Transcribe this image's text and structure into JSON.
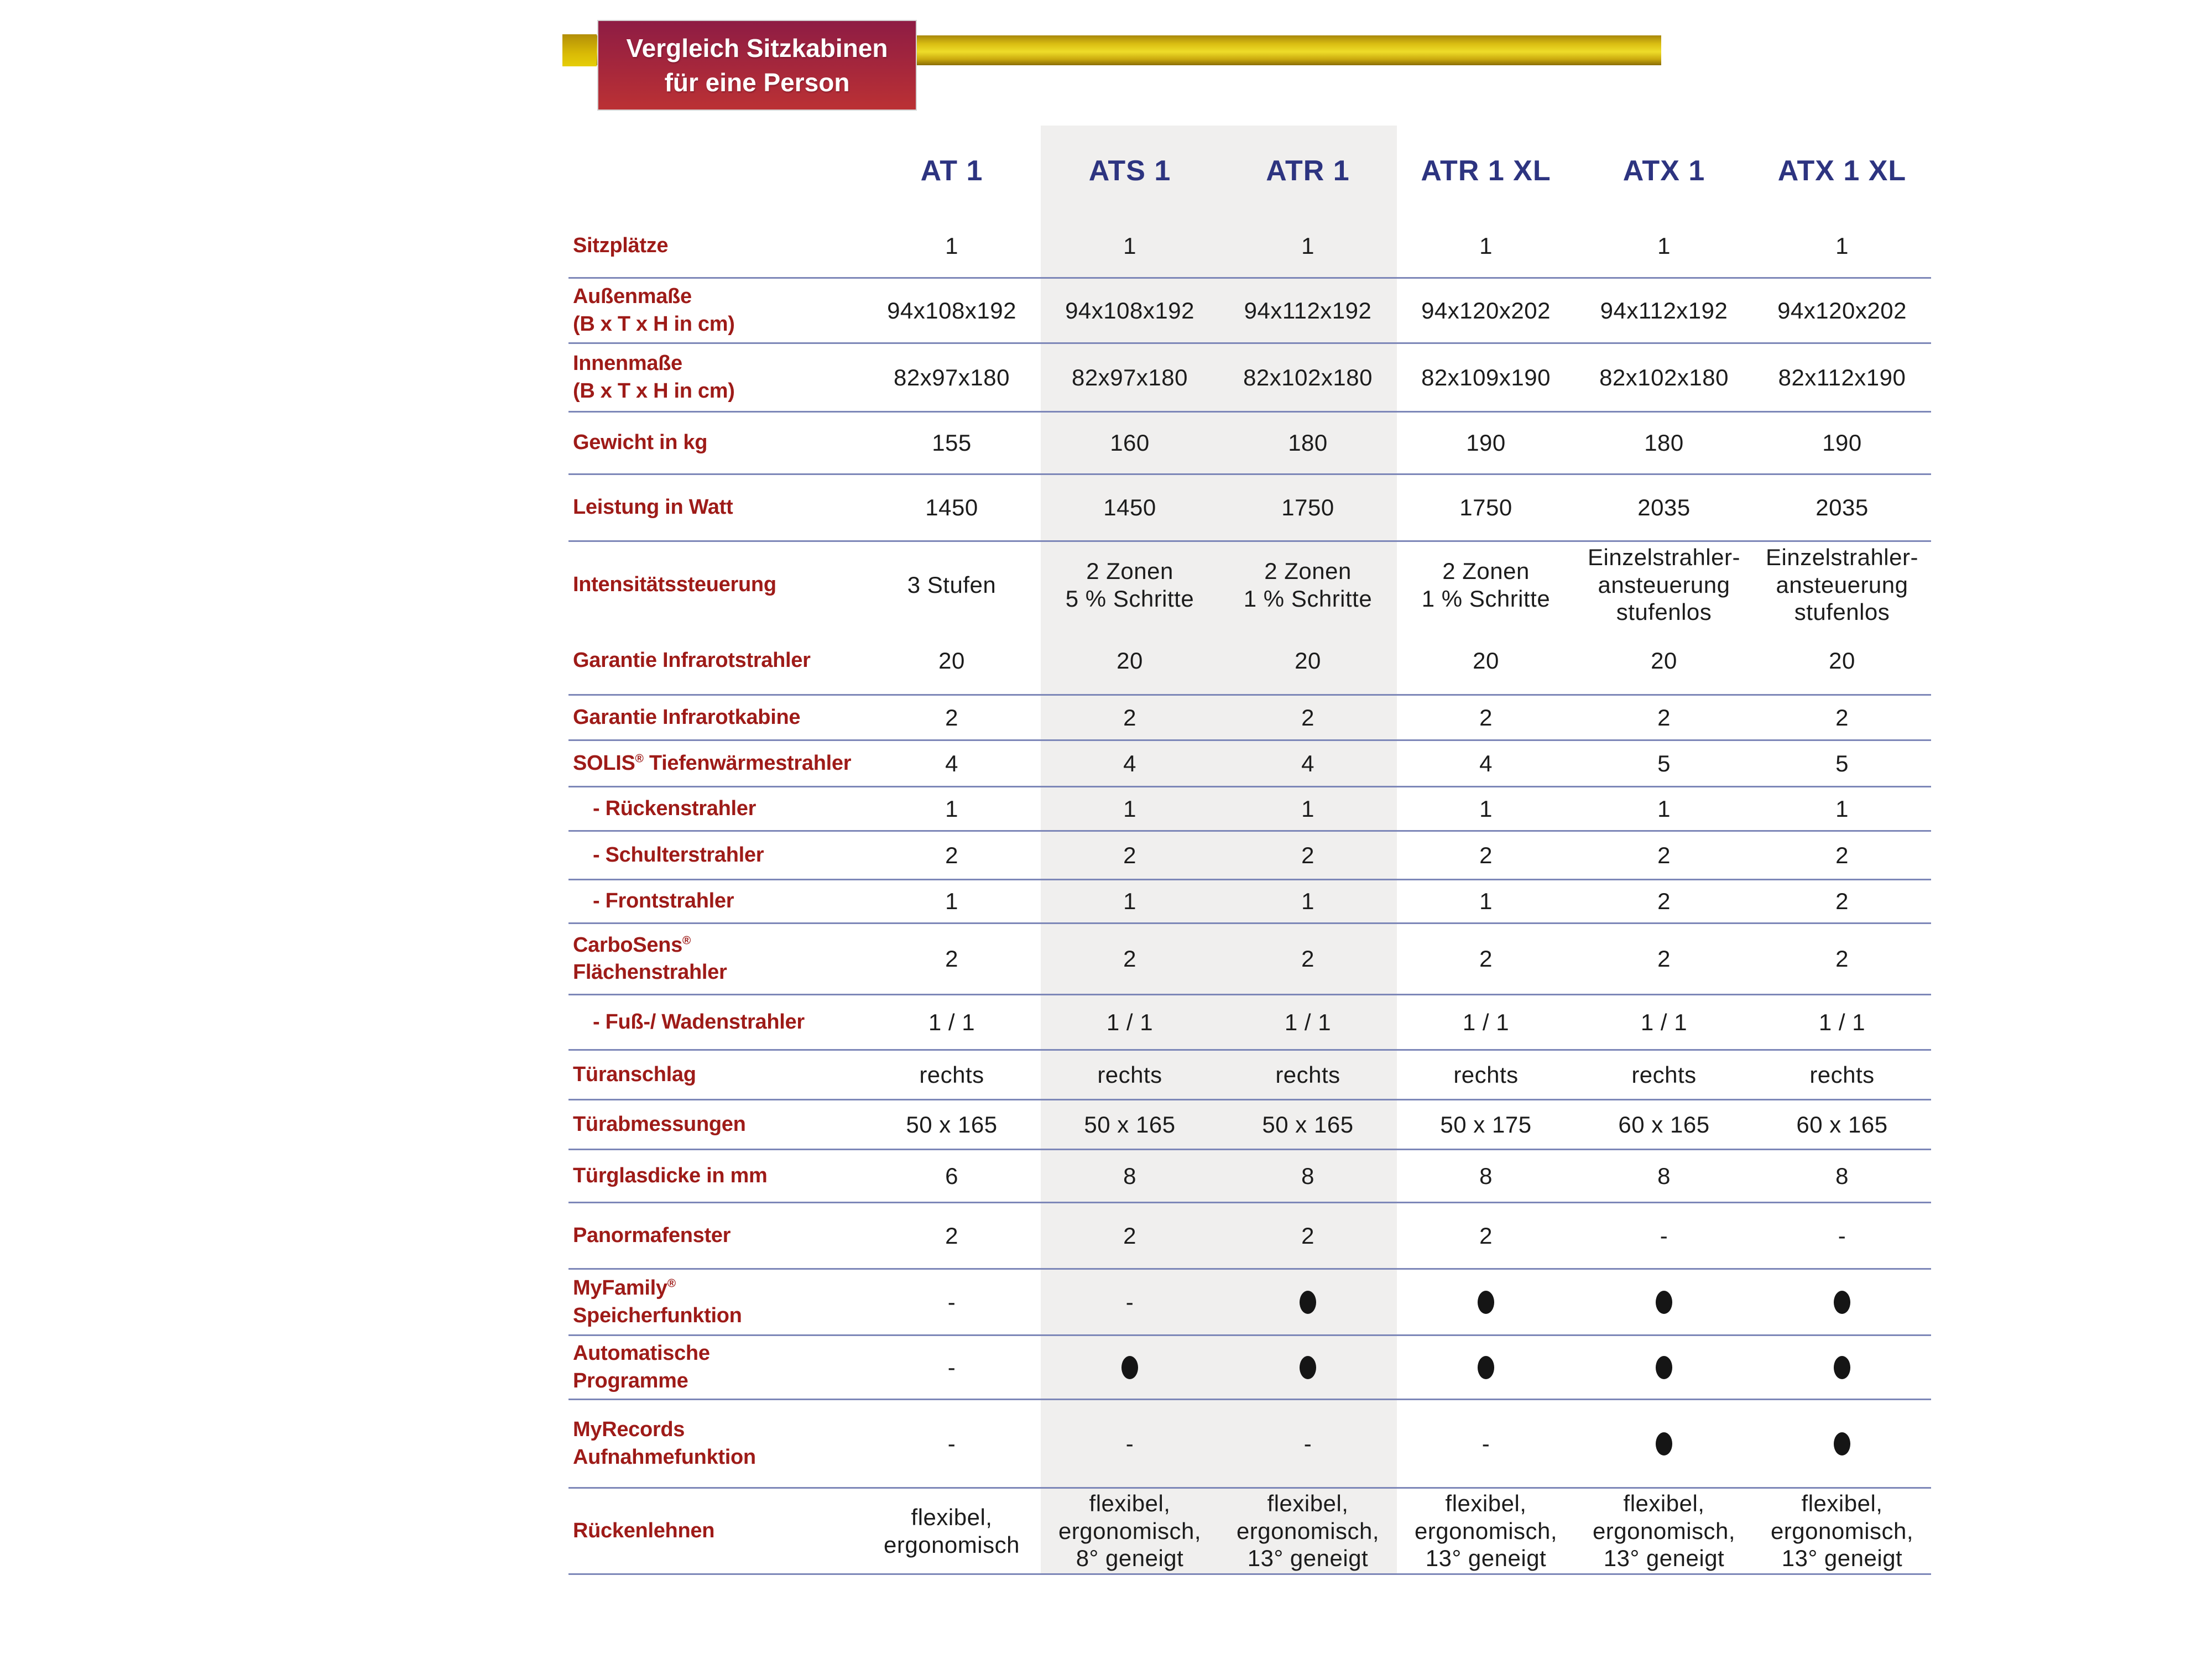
{
  "title": {
    "line1": "Vergleich Sitzkabinen",
    "line2": "für eine Person"
  },
  "table": {
    "models": [
      "AT 1",
      "ATS 1",
      "ATR 1",
      "ATR 1 XL",
      "ATX 1",
      "ATX 1 XL"
    ],
    "highlighted_columns": [
      "ATS 1",
      "ATR 1"
    ],
    "feature_dot_symbol": "●",
    "rows": [
      {
        "label": "Sitzplätze",
        "values": [
          "1",
          "1",
          "1",
          "1",
          "1",
          "1"
        ]
      },
      {
        "label": "Außenmaße\n(B x T x H in cm)",
        "values": [
          "94x108x192",
          "94x108x192",
          "94x112x192",
          "94x120x202",
          "94x112x192",
          "94x120x202"
        ]
      },
      {
        "label": "Innenmaße\n(B x T x H in cm)",
        "values": [
          "82x97x180",
          "82x97x180",
          "82x102x180",
          "82x109x190",
          "82x102x180",
          "82x112x190"
        ]
      },
      {
        "label": "Gewicht in kg",
        "values": [
          "155",
          "160",
          "180",
          "190",
          "180",
          "190"
        ]
      },
      {
        "label": "Leistung in Watt",
        "values": [
          "1450",
          "1450",
          "1750",
          "1750",
          "2035",
          "2035"
        ]
      },
      {
        "label": "Intensitätssteuerung",
        "separator": false,
        "values": [
          "3 Stufen",
          "2 Zonen\n5 % Schritte",
          "2 Zonen\n1 % Schritte",
          "2 Zonen\n1 % Schritte",
          "Einzelstrahler-\nansteuerung\nstufenlos",
          "Einzelstrahler-\nansteuerung\nstufenlos"
        ]
      },
      {
        "label": "Garantie Infrarotstrahler",
        "values": [
          "20",
          "20",
          "20",
          "20",
          "20",
          "20"
        ]
      },
      {
        "label": "Garantie Infrarotkabine",
        "values": [
          "2",
          "2",
          "2",
          "2",
          "2",
          "2"
        ]
      },
      {
        "label": "SOLIS® Tiefenwärmestrahler",
        "values": [
          "4",
          "4",
          "4",
          "4",
          "5",
          "5"
        ]
      },
      {
        "label": "- Rückenstrahler",
        "indent": true,
        "values": [
          "1",
          "1",
          "1",
          "1",
          "1",
          "1"
        ]
      },
      {
        "label": "- Schulterstrahler",
        "indent": true,
        "values": [
          "2",
          "2",
          "2",
          "2",
          "2",
          "2"
        ]
      },
      {
        "label": "- Frontstrahler",
        "indent": true,
        "values": [
          "1",
          "1",
          "1",
          "1",
          "2",
          "2"
        ]
      },
      {
        "label": "CarboSens®\nFlächenstrahler",
        "values": [
          "2",
          "2",
          "2",
          "2",
          "2",
          "2"
        ]
      },
      {
        "label": "- Fuß-/ Wadenstrahler",
        "indent": true,
        "values": [
          "1 / 1",
          "1 / 1",
          "1 / 1",
          "1 / 1",
          "1 / 1",
          "1 / 1"
        ]
      },
      {
        "label": "Türanschlag",
        "values": [
          "rechts",
          "rechts",
          "rechts",
          "rechts",
          "rechts",
          "rechts"
        ]
      },
      {
        "label": "Türabmessungen",
        "values": [
          "50 x 165",
          "50 x 165",
          "50 x 165",
          "50 x 175",
          "60 x 165",
          "60 x 165"
        ]
      },
      {
        "label": "Türglasdicke in mm",
        "values": [
          "6",
          "8",
          "8",
          "8",
          "8",
          "8"
        ]
      },
      {
        "label": "Panormafenster",
        "values": [
          "2",
          "2",
          "2",
          "2",
          "-",
          "-"
        ]
      },
      {
        "label": "MyFamily®\nSpeicherfunktion",
        "values": [
          "-",
          "-",
          "●",
          "●",
          "●",
          "●"
        ]
      },
      {
        "label": "Automatische\nProgramme",
        "values": [
          "-",
          "●",
          "●",
          "●",
          "●",
          "●"
        ]
      },
      {
        "label": "MyRecords\nAufnahmefunktion",
        "values": [
          "-",
          "-",
          "-",
          "-",
          "●",
          "●"
        ]
      },
      {
        "label": "Rückenlehnen",
        "values": [
          "flexibel,\nergonomisch",
          "flexibel,\nergonomisch,\n8° geneigt",
          "flexibel,\nergonomisch,\n13° geneigt",
          "flexibel,\nergonomisch,\n13° geneigt",
          "flexibel,\nergonomisch,\n13° geneigt",
          "flexibel,\nergonomisch,\n13° geneigt"
        ]
      }
    ]
  },
  "colors": {
    "label_red": "#9e1b18",
    "header_navy": "#2d3480",
    "line_blue": "#7d87b8",
    "band_grey": "#f0efee",
    "banner_top": "#8e1c44",
    "banner_bottom": "#bb3134",
    "bar_gold": "#eedd2a"
  }
}
